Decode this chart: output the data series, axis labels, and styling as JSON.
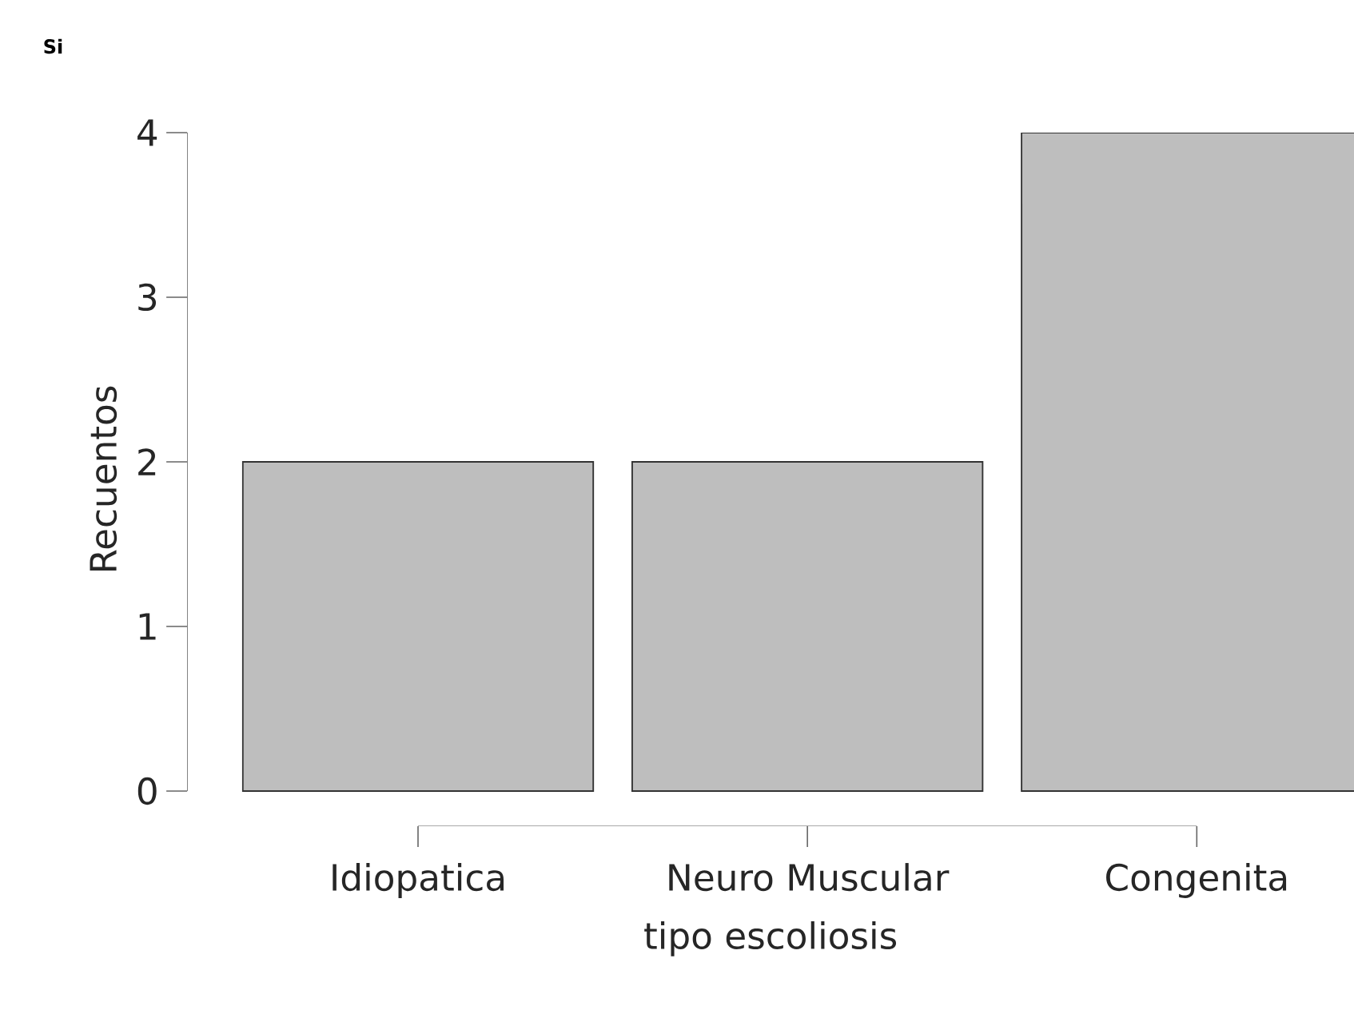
{
  "chart_data": {
    "type": "bar",
    "title": "Si",
    "xlabel": "tipo escoliosis",
    "ylabel": "Recuentos",
    "categories": [
      "Idiopatica",
      "Neuro Muscular",
      "Congenita"
    ],
    "values": [
      2,
      2,
      4
    ],
    "color": "#bebebe",
    "ylim": [
      0,
      4
    ],
    "yticks": [
      0,
      1,
      2,
      3,
      4
    ]
  }
}
